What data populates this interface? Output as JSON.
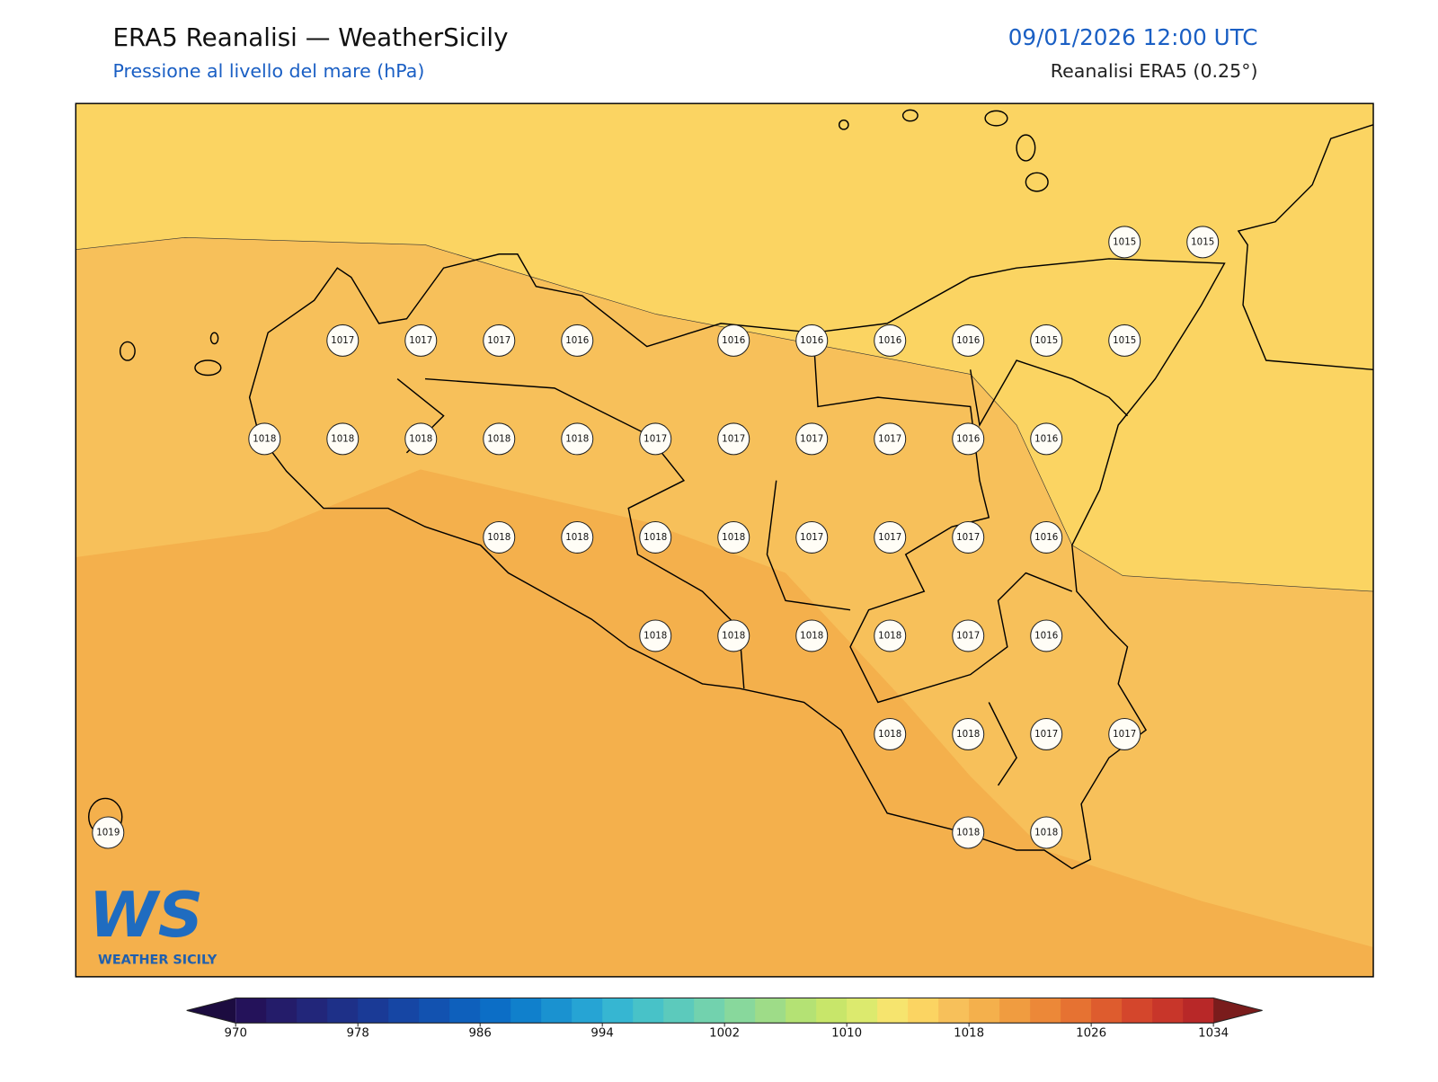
{
  "header": {
    "title": "ERA5 Reanalisi — WeatherSicily",
    "subtitle": "Pressione al livello del mare (hPa)",
    "datetime": "09/01/2026 12:00 UTC",
    "source": "Reanalisi ERA5 (0.25°)"
  },
  "stations": [
    1015,
    1015,
    1017,
    1017,
    1017,
    1016,
    1016,
    1016,
    1016,
    1016,
    1015,
    1015,
    1018,
    1018,
    1018,
    1018,
    1018,
    1017,
    1017,
    1017,
    1017,
    1016,
    1016,
    1018,
    1018,
    1018,
    1018,
    1017,
    1017,
    1017,
    1016,
    1018,
    1018,
    1018,
    1018,
    1017,
    1016,
    1018,
    1018,
    1017,
    1017,
    1019,
    1018,
    1018
  ],
  "colorbar": {
    "range": [
      970,
      1034
    ],
    "ticks": [
      970,
      978,
      986,
      994,
      1002,
      1010,
      1018,
      1026,
      1034
    ],
    "under_color": "#1c0c40",
    "over_color": "#7a1c1c",
    "colors": [
      "#24125a",
      "#241c6a",
      "#22267a",
      "#1e3088",
      "#1a3a96",
      "#1646a4",
      "#1252b0",
      "#0e60bc",
      "#0c6ec6",
      "#1080cc",
      "#1a92d0",
      "#26a4d4",
      "#36b6d2",
      "#48c2c8",
      "#5ccabc",
      "#72d2ae",
      "#88d89c",
      "#9edc88",
      "#b4e274",
      "#c8e66a",
      "#dcea6e",
      "#f6e46e",
      "#fbd462",
      "#f7c05a",
      "#f4b04c",
      "#f09c40",
      "#ec8838",
      "#e67232",
      "#de5c2e",
      "#d4462c",
      "#c8362a",
      "#b82828"
    ]
  },
  "logo": {
    "mark": "WS",
    "text": "WEATHER SICILY"
  }
}
